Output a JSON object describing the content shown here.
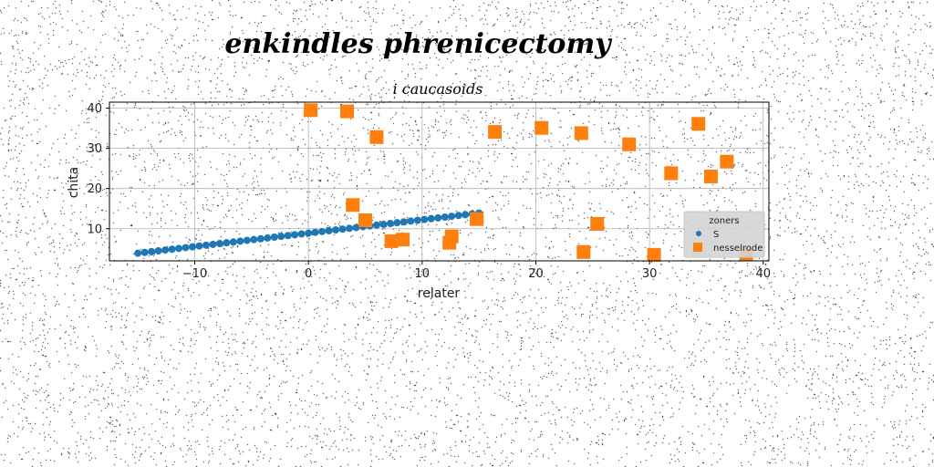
{
  "figure": {
    "suptitle": "enkindles phrenicectomy"
  },
  "chart_data": {
    "type": "scatter",
    "title": "i caucasoids",
    "xlabel": "relater",
    "ylabel": "chita",
    "xlim": [
      -17.5,
      40.5
    ],
    "ylim": [
      2,
      41.5
    ],
    "xticks": [
      -10,
      0,
      10,
      20,
      30,
      40
    ],
    "yticks": [
      10,
      20,
      30,
      40
    ],
    "grid": true,
    "legend": {
      "title": "zoners",
      "placement": "lower-right"
    },
    "series": [
      {
        "name": "S",
        "marker": "circle",
        "color": "#1f77b4",
        "x": [
          -15,
          -14.4,
          -13.8,
          -13.2,
          -12.6,
          -12,
          -11.4,
          -10.8,
          -10.2,
          -9.6,
          -9,
          -8.4,
          -7.8,
          -7.2,
          -6.6,
          -6,
          -5.4,
          -4.8,
          -4.2,
          -3.6,
          -3,
          -2.4,
          -1.8,
          -1.2,
          -0.6,
          0,
          0.6,
          1.2,
          1.8,
          2.4,
          3,
          3.6,
          4.2,
          4.8,
          5.4,
          6,
          6.6,
          7.2,
          7.8,
          8.4,
          9,
          9.6,
          10.2,
          10.8,
          11.4,
          12,
          12.6,
          13.2,
          13.8,
          14.4,
          15
        ],
        "y": [
          3.9,
          4.1,
          4.3,
          4.5,
          4.7,
          4.9,
          5.1,
          5.3,
          5.5,
          5.7,
          5.9,
          6.1,
          6.3,
          6.5,
          6.7,
          6.9,
          7.1,
          7.3,
          7.5,
          7.7,
          7.9,
          8.1,
          8.3,
          8.5,
          8.7,
          8.9,
          9.1,
          9.3,
          9.5,
          9.7,
          9.9,
          10.1,
          10.3,
          10.5,
          10.7,
          10.9,
          11.1,
          11.3,
          11.5,
          11.7,
          11.9,
          12.1,
          12.3,
          12.5,
          12.7,
          12.9,
          13.1,
          13.3,
          13.5,
          13.7,
          13.9
        ]
      },
      {
        "name": "nesselrode",
        "marker": "square",
        "color": "#ff7f0e",
        "x": [
          0.2,
          3.4,
          6,
          3.9,
          5,
          7.3,
          8.3,
          12.4,
          12.6,
          14.8,
          16.4,
          20.5,
          24,
          24.2,
          25.4,
          28.2,
          30.4,
          31.9,
          34.3,
          35.4,
          36.8,
          38.5
        ],
        "y": [
          39.5,
          39.2,
          32.8,
          15.9,
          12.1,
          6.9,
          7.3,
          6.5,
          8.1,
          12.4,
          34.1,
          35.1,
          33.8,
          4.2,
          11.2,
          31,
          3.5,
          23.8,
          36.1,
          23,
          26.7,
          3.6
        ]
      }
    ]
  }
}
